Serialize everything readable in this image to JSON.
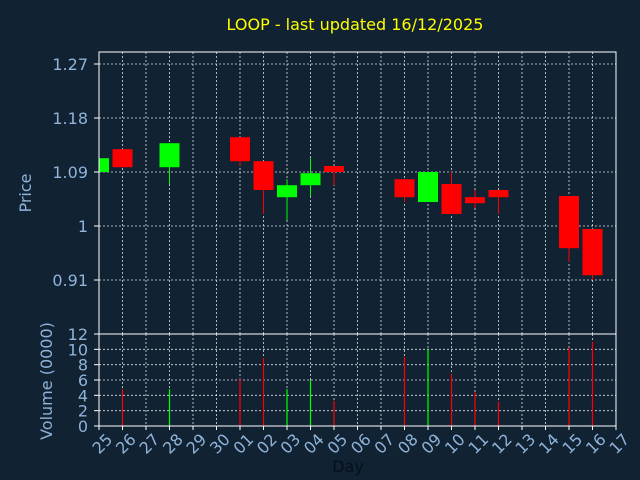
{
  "chart_data": {
    "type": "candlestick",
    "title": "LOOP - last updated 16/12/2025",
    "xlabel": "Day",
    "ylabel_price": "Price",
    "ylabel_volume": "Volume (0000)",
    "x_ticks": [
      "25",
      "26",
      "27",
      "28",
      "29",
      "30",
      "01",
      "02",
      "03",
      "04",
      "05",
      "06",
      "07",
      "08",
      "09",
      "10",
      "11",
      "12",
      "13",
      "14",
      "15",
      "16",
      "17"
    ],
    "price_ticks": [
      "0.91",
      "1",
      "1.09",
      "1.18",
      "1.27"
    ],
    "volume_ticks": [
      "0",
      "2",
      "4",
      "6",
      "8",
      "10",
      "12"
    ],
    "price_range": [
      0.82,
      1.29
    ],
    "volume_range": [
      0,
      12
    ],
    "grid": true,
    "colors": {
      "background": "#112233",
      "up": "#00ff00",
      "down": "#ff0000",
      "grid": "#ffffff",
      "title": "#ffff00",
      "axis_text": "#8fb3d9"
    },
    "candles": [
      {
        "day": 0,
        "open": 1.09,
        "close": 1.113,
        "high": 1.113,
        "low": 1.09,
        "volume": 0
      },
      {
        "day": 1,
        "open": 1.128,
        "close": 1.098,
        "high": 1.128,
        "low": 1.098,
        "volume": 4.8
      },
      {
        "day": 3,
        "open": 1.098,
        "close": 1.138,
        "high": 1.138,
        "low": 1.07,
        "volume": 4.8
      },
      {
        "day": 6,
        "open": 1.148,
        "close": 1.108,
        "high": 1.148,
        "low": 1.1,
        "volume": 6.2
      },
      {
        "day": 7,
        "open": 1.108,
        "close": 1.06,
        "high": 1.108,
        "low": 1.02,
        "volume": 8.9
      },
      {
        "day": 8,
        "open": 1.048,
        "close": 1.068,
        "high": 1.078,
        "low": 1.01,
        "volume": 4.8
      },
      {
        "day": 9,
        "open": 1.068,
        "close": 1.088,
        "high": 1.113,
        "low": 1.05,
        "volume": 6.0
      },
      {
        "day": 10,
        "open": 1.1,
        "close": 1.09,
        "high": 1.1,
        "low": 1.068,
        "volume": 3.3
      },
      {
        "day": 13,
        "open": 1.078,
        "close": 1.048,
        "high": 1.078,
        "low": 1.04,
        "volume": 9.0
      },
      {
        "day": 14,
        "open": 1.04,
        "close": 1.09,
        "high": 1.09,
        "low": 1.04,
        "volume": 10.0
      },
      {
        "day": 15,
        "open": 1.07,
        "close": 1.02,
        "high": 1.09,
        "low": 1.02,
        "volume": 6.8
      },
      {
        "day": 16,
        "open": 1.048,
        "close": 1.038,
        "high": 1.06,
        "low": 1.03,
        "volume": 4.4
      },
      {
        "day": 17,
        "open": 1.06,
        "close": 1.048,
        "high": 1.06,
        "low": 1.02,
        "volume": 3.2
      },
      {
        "day": 20,
        "open": 1.05,
        "close": 0.963,
        "high": 1.05,
        "low": 0.94,
        "volume": 10.2
      },
      {
        "day": 21,
        "open": 0.995,
        "close": 0.918,
        "high": 0.995,
        "low": 0.91,
        "volume": 11.0
      }
    ]
  }
}
